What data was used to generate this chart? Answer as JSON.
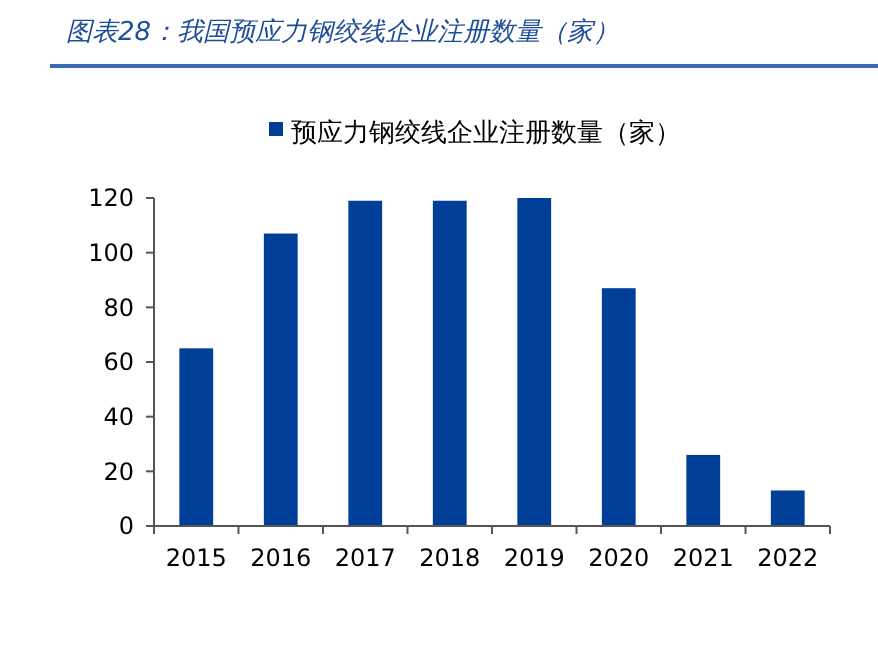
{
  "chart_data": {
    "type": "bar",
    "title": "图表28：我国预应力钢绞线企业注册数量（家）",
    "categories": [
      "2015",
      "2016",
      "2017",
      "2018",
      "2019",
      "2020",
      "2021",
      "2022"
    ],
    "series": [
      {
        "name": "预应力钢绞线企业注册数量（家）",
        "color": "#003f98",
        "values": [
          65,
          107,
          119,
          119,
          120,
          87,
          26,
          13
        ]
      }
    ],
    "ylim": [
      0,
      120
    ],
    "yticks": [
      0,
      20,
      40,
      60,
      80,
      100,
      120
    ],
    "grid": false,
    "legend": "top"
  }
}
